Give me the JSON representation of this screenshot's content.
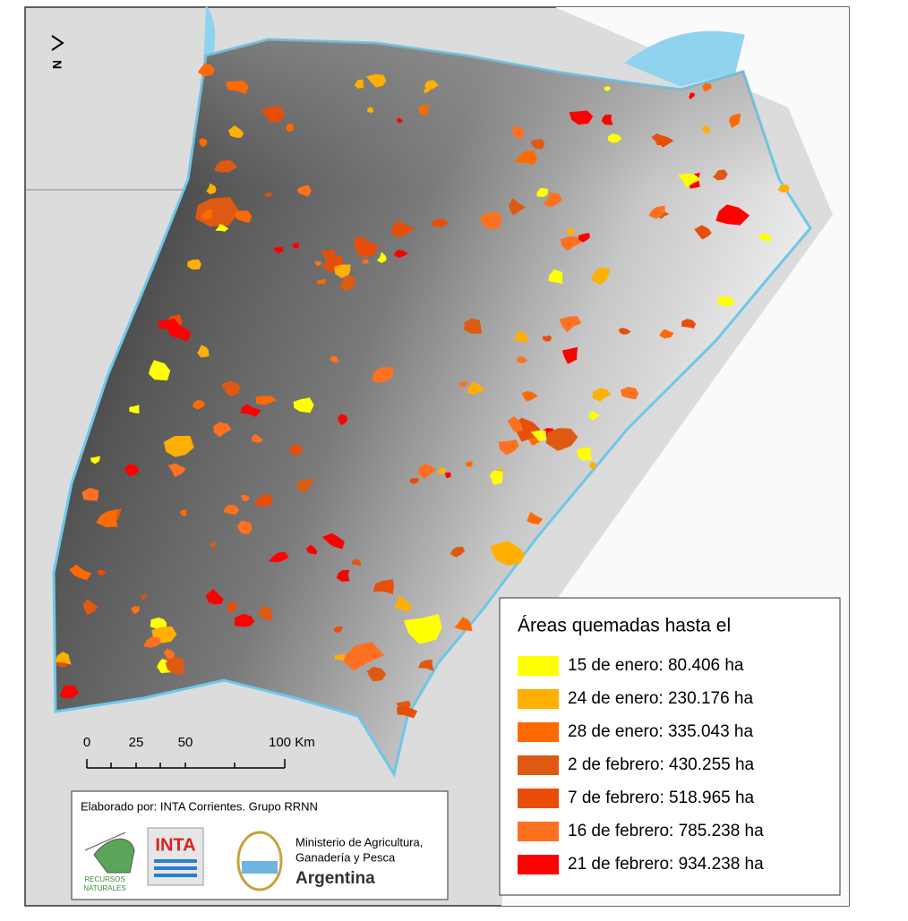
{
  "north_arrow": "N",
  "legend": {
    "title": "Áreas quemadas hasta el",
    "items": [
      {
        "label": "15 de enero: 80.406 ha",
        "color": "#ffff00"
      },
      {
        "label": "24 de enero: 230.176 ha",
        "color": "#ffb000"
      },
      {
        "label": "28 de enero: 335.043 ha",
        "color": "#ff6a00"
      },
      {
        "label": "2 de febrero: 430.255 ha",
        "color": "#de5a12"
      },
      {
        "label": "7 de febrero: 518.965 ha",
        "color": "#e84e0a"
      },
      {
        "label": "16 de febrero: 785.238 ha",
        "color": "#ff7020"
      },
      {
        "label": "21 de febrero: 934.238 ha",
        "color": "#ff0000"
      }
    ]
  },
  "scale_bar": {
    "labels": [
      "0",
      "25",
      "50",
      "100 Km"
    ]
  },
  "credits": {
    "text": "Elaborado por: INTA Corrientes. Grupo RRNN",
    "logo_recursos": [
      "RECURSOS",
      "NATURALES"
    ],
    "logo_inta": "INTA",
    "ministry": [
      "Ministerio de Agricultura,",
      "Ganadería y Pesca",
      "Argentina"
    ]
  }
}
